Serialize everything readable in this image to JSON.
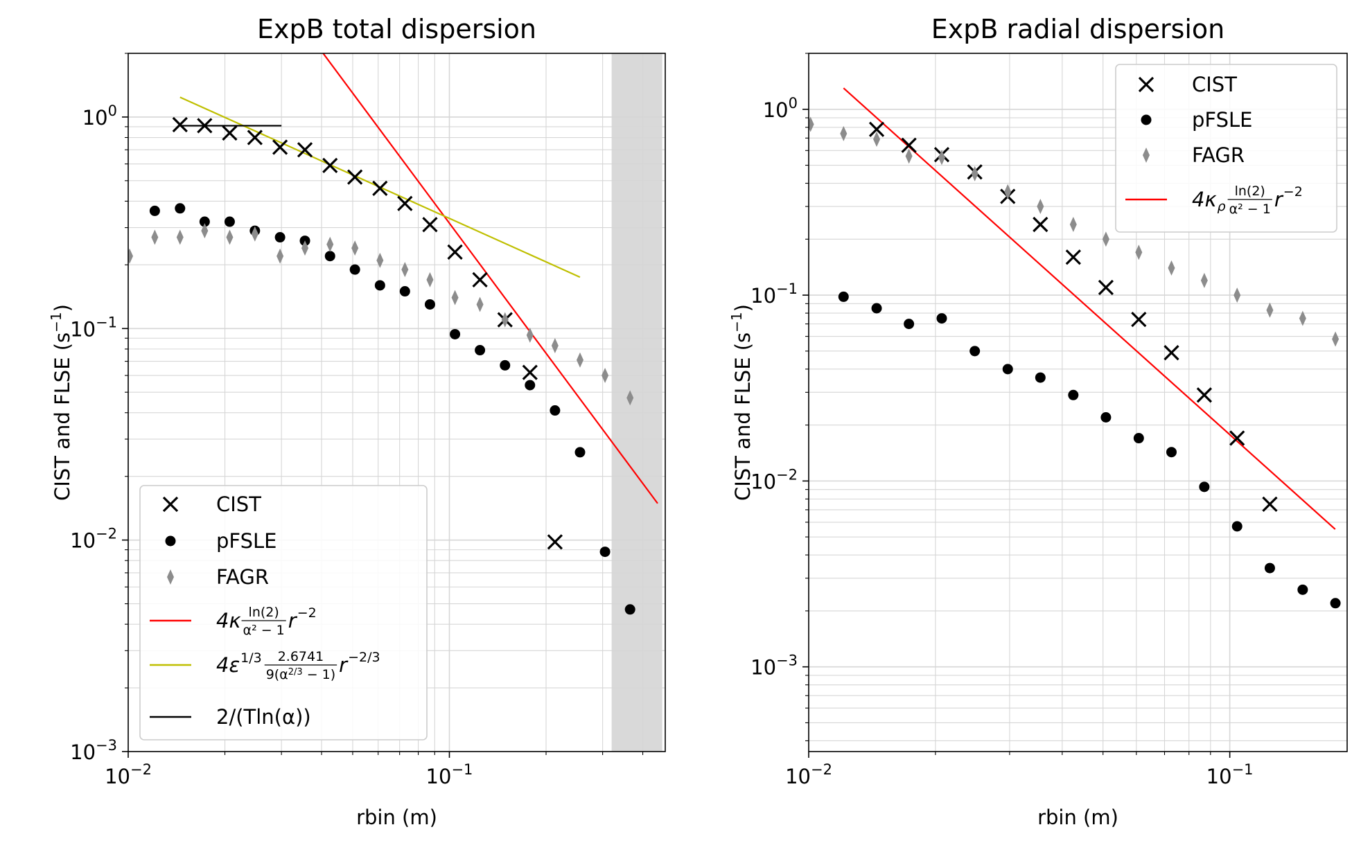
{
  "chart_data": [
    {
      "type": "scatter",
      "title": "ExpB total dispersion",
      "xlabel": "rbin (m)",
      "ylabel": "CIST and FLSE (s",
      "ylabel_sup": "−1",
      "ylabel_close": ")",
      "xscale": "log",
      "yscale": "log",
      "xlim": [
        0.01,
        0.47
      ],
      "ylim": [
        0.001,
        2.0
      ],
      "grid": true,
      "shaded_region": {
        "x": [
          0.32,
          0.46
        ],
        "color": "#d9d9d9"
      },
      "legend_location": "lower-left",
      "xticks": [
        {
          "base": "10",
          "exp": "−2",
          "value": 0.01
        },
        {
          "base": "10",
          "exp": "−1",
          "value": 0.1
        }
      ],
      "yticks": [
        {
          "base": "10",
          "exp": "0",
          "value": 1
        },
        {
          "base": "10",
          "exp": "−1",
          "value": 0.1
        },
        {
          "base": "10",
          "exp": "−2",
          "value": 0.01
        },
        {
          "base": "10",
          "exp": "−3",
          "value": 0.001
        }
      ],
      "series": [
        {
          "name": "CIST",
          "marker": "x",
          "color": "#000000",
          "x": [
            0.0145,
            0.0173,
            0.0207,
            0.0248,
            0.0297,
            0.0355,
            0.0425,
            0.0508,
            0.0608,
            0.0727,
            0.087,
            0.1041,
            0.1245,
            0.149,
            0.1782,
            0.2132
          ],
          "y": [
            0.92,
            0.91,
            0.84,
            0.8,
            0.72,
            0.7,
            0.59,
            0.52,
            0.46,
            0.39,
            0.31,
            0.23,
            0.17,
            0.11,
            0.062,
            0.0098
          ]
        },
        {
          "name": "pFSLE",
          "marker": "circle",
          "color": "#000000",
          "x": [
            0.0121,
            0.0145,
            0.0173,
            0.0207,
            0.0248,
            0.0297,
            0.0355,
            0.0425,
            0.0508,
            0.0608,
            0.0727,
            0.087,
            0.1041,
            0.1245,
            0.149,
            0.1782,
            0.2132,
            0.2551,
            0.3052,
            0.3652
          ],
          "y": [
            0.36,
            0.37,
            0.32,
            0.32,
            0.29,
            0.27,
            0.26,
            0.22,
            0.19,
            0.16,
            0.15,
            0.13,
            0.094,
            0.079,
            0.067,
            0.054,
            0.041,
            0.026,
            0.0088,
            0.0047
          ]
        },
        {
          "name": "FAGR",
          "marker": "thin-diamond",
          "color": "#8c8c8c",
          "x": [
            0.0101,
            0.0121,
            0.0145,
            0.0173,
            0.0207,
            0.0248,
            0.0297,
            0.0355,
            0.0425,
            0.0508,
            0.0608,
            0.0727,
            0.087,
            0.1041,
            0.1245,
            0.149,
            0.1782,
            0.2132,
            0.2551,
            0.3052,
            0.3652
          ],
          "y": [
            0.22,
            0.27,
            0.27,
            0.29,
            0.27,
            0.28,
            0.22,
            0.24,
            0.25,
            0.24,
            0.21,
            0.19,
            0.17,
            0.14,
            0.13,
            0.11,
            0.093,
            0.083,
            0.071,
            0.06,
            0.047
          ]
        },
        {
          "name": "4κ ln(2)/(α²−1) r⁻²",
          "type": "line",
          "color": "#ff0000",
          "x": [
            0.0395,
            0.445
          ],
          "y": [
            2.1,
            0.0149
          ]
        },
        {
          "name": "4ε^(1/3) 2.6741/(9(α^(2/3)−1)) r^(−2/3)",
          "type": "line",
          "color": "#bfbf00",
          "x": [
            0.0145,
            0.255
          ],
          "y": [
            1.24,
            0.175
          ]
        },
        {
          "name": "2/(T ln(α))",
          "type": "line",
          "color": "#000000",
          "x": [
            0.0145,
            0.03
          ],
          "y": [
            0.91,
            0.91
          ]
        }
      ],
      "legend": [
        {
          "marker": "x",
          "label": "CIST"
        },
        {
          "marker": "circle",
          "label": "pFSLE"
        },
        {
          "marker": "thin-diamond",
          "label": "FAGR"
        },
        {
          "marker": "line-red",
          "parts": {
            "pre": "4κ",
            "num": "ln(2)",
            "den": "α² − 1",
            "post": "r",
            "sup": "−2"
          }
        },
        {
          "marker": "line-olive",
          "parts": {
            "pre": "4ε",
            "presup": "1/3",
            "num": "2.6741",
            "den": "9(α",
            "densup": "2/3",
            "denpost": " − 1)",
            "post": "r",
            "sup": "−2/3"
          }
        },
        {
          "marker": "line-black",
          "parts": {
            "text": "2/(Tln(α))"
          }
        }
      ]
    },
    {
      "type": "scatter",
      "title": "ExpB radial dispersion",
      "xlabel": "rbin (m)",
      "ylabel": "CIST and FLSE (s",
      "ylabel_sup": "−1",
      "ylabel_close": ")",
      "xscale": "log",
      "yscale": "log",
      "xlim": [
        0.01,
        0.19
      ],
      "ylim": [
        0.00035,
        2.0
      ],
      "grid": true,
      "legend_location": "upper-right",
      "xticks": [
        {
          "base": "10",
          "exp": "−2",
          "value": 0.01
        },
        {
          "base": "10",
          "exp": "−1",
          "value": 0.1
        }
      ],
      "yticks": [
        {
          "base": "10",
          "exp": "0",
          "value": 1
        },
        {
          "base": "10",
          "exp": "−1",
          "value": 0.1
        },
        {
          "base": "10",
          "exp": "−2",
          "value": 0.01
        },
        {
          "base": "10",
          "exp": "−3",
          "value": 0.001
        }
      ],
      "series": [
        {
          "name": "CIST",
          "marker": "x",
          "color": "#000000",
          "x": [
            0.0145,
            0.0173,
            0.0207,
            0.0248,
            0.0297,
            0.0355,
            0.0425,
            0.0508,
            0.0608,
            0.0727,
            0.087,
            0.1041,
            0.1245
          ],
          "y": [
            0.78,
            0.64,
            0.57,
            0.46,
            0.34,
            0.24,
            0.16,
            0.11,
            0.074,
            0.049,
            0.029,
            0.017,
            0.0075
          ]
        },
        {
          "name": "pFSLE",
          "marker": "circle",
          "color": "#000000",
          "x": [
            0.0121,
            0.0145,
            0.0173,
            0.0207,
            0.0248,
            0.0297,
            0.0355,
            0.0425,
            0.0508,
            0.0608,
            0.0727,
            0.087,
            0.1041,
            0.1245,
            0.149,
            0.1782
          ],
          "y": [
            0.098,
            0.085,
            0.07,
            0.075,
            0.05,
            0.04,
            0.036,
            0.029,
            0.022,
            0.017,
            0.0143,
            0.0093,
            0.0057,
            0.0034,
            0.0026,
            0.0022
          ]
        },
        {
          "name": "FAGR",
          "marker": "thin-diamond",
          "color": "#8c8c8c",
          "x": [
            0.0101,
            0.0121,
            0.0145,
            0.0173,
            0.0207,
            0.0248,
            0.0297,
            0.0355,
            0.0425,
            0.0508,
            0.0608,
            0.0727,
            0.087,
            0.1041,
            0.1245,
            0.149,
            0.1782
          ],
          "y": [
            0.83,
            0.74,
            0.69,
            0.56,
            0.55,
            0.45,
            0.36,
            0.3,
            0.24,
            0.2,
            0.17,
            0.14,
            0.12,
            0.1,
            0.083,
            0.075,
            0.058
          ]
        },
        {
          "name": "4κρ ln(2)/(α²−1) r⁻²",
          "type": "line",
          "color": "#ff0000",
          "x": [
            0.0121,
            0.178
          ],
          "y": [
            1.3,
            0.0055
          ]
        }
      ],
      "legend": [
        {
          "marker": "x",
          "label": "CIST"
        },
        {
          "marker": "circle",
          "label": "pFSLE"
        },
        {
          "marker": "thin-diamond",
          "label": "FAGR"
        },
        {
          "marker": "line-red",
          "parts": {
            "pre": "4κ",
            "presub": "ρ",
            "num": "ln(2)",
            "den": "α² − 1",
            "post": "r",
            "sup": "−2"
          }
        }
      ]
    }
  ]
}
